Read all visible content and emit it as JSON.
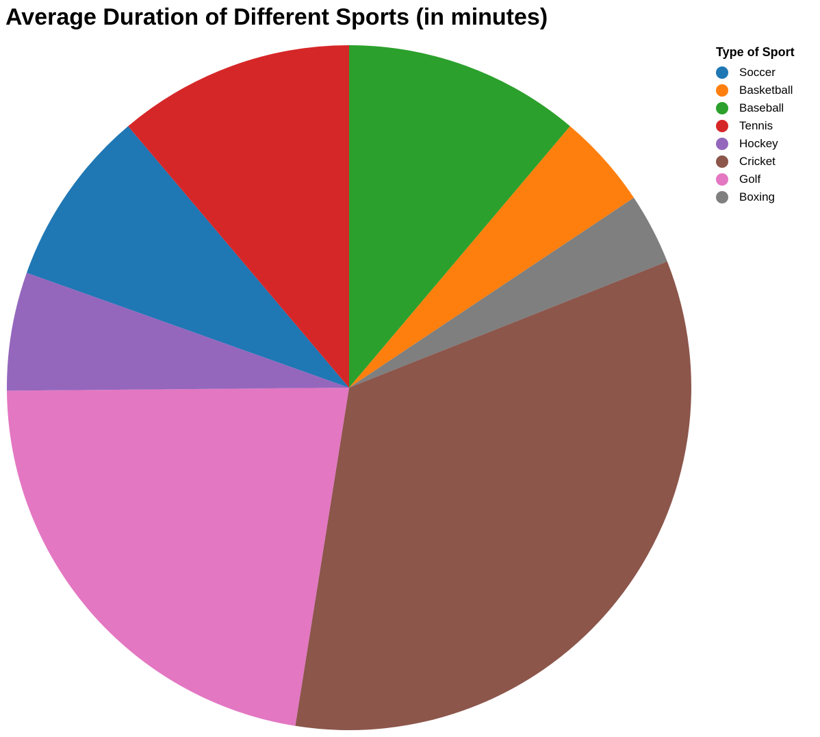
{
  "chart_data": {
    "type": "pie",
    "title": "Average Duration of Different Sports (in minutes)",
    "legend_title": "Type of Sport",
    "legend_position": "top-right",
    "categories": [
      "Soccer",
      "Basketball",
      "Baseball",
      "Tennis",
      "Hockey",
      "Cricket",
      "Golf",
      "Boxing"
    ],
    "values": [
      90,
      48,
      120,
      120,
      60,
      360,
      240,
      36
    ],
    "colors": [
      "#1f77b4",
      "#ff7f0e",
      "#2ca02c",
      "#d62728",
      "#9467bd",
      "#8c564b",
      "#e377c2",
      "#7f7f7f"
    ],
    "slice_order": [
      "Baseball",
      "Basketball",
      "Boxing",
      "Cricket",
      "Golf",
      "Hockey",
      "Soccer",
      "Tennis"
    ]
  }
}
